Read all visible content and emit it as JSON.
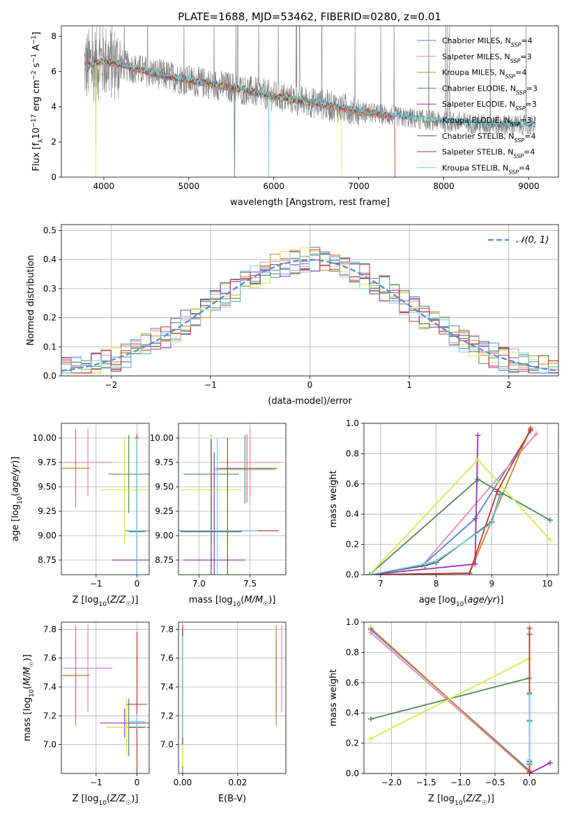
{
  "figure_title": "PLATE=1688, MJD=53462, FIBERID=0280, z=0.01",
  "palette": {
    "Chabrier MILES": "#5b7fd3",
    "Salpeter MILES": "#e587b5",
    "Kroupa MILES": "#c8862a",
    "Chabrier ELODIE": "#4f8a55",
    "Salpeter ELODIE": "#9b2fb5",
    "Kroupa ELODIE": "#d3ec4a",
    "Chabrier STELIB": "#555555",
    "Salpeter STELIB": "#c0392b",
    "Kroupa STELIB": "#6fd3e3"
  },
  "legend_items": [
    "Chabrier MILES",
    "Salpeter MILES",
    "Kroupa MILES",
    "Chabrier ELODIE",
    "Salpeter ELODIE",
    "Kroupa ELODIE",
    "Chabrier STELIB",
    "Salpeter STELIB",
    "Kroupa STELIB"
  ],
  "chart_data": [
    {
      "id": "spectrum",
      "type": "line",
      "xlabel": "wavelength [Angstrom, rest frame]",
      "ylabel": "Flux [f_λ 10^-17 erg cm^-2 s^-1 A^-1]",
      "xlim": [
        3500,
        9350
      ],
      "ylim": [
        0,
        8.6
      ],
      "xticks": [
        4000,
        5000,
        6000,
        7000,
        8000,
        9000
      ],
      "yticks": [
        0,
        2,
        4,
        6,
        8
      ],
      "legend_position": "top-right",
      "series": [
        {
          "name": "Chabrier MILES, N_SSP=4",
          "n_ssp": 4
        },
        {
          "name": "Salpeter MILES, N_SSP=3",
          "n_ssp": 3
        },
        {
          "name": "Kroupa MILES, N_SSP=4",
          "n_ssp": 4
        },
        {
          "name": "Chabrier ELODIE, N_SSP=3",
          "n_ssp": 3
        },
        {
          "name": "Salpeter ELODIE, N_SSP=3",
          "n_ssp": 3
        },
        {
          "name": "Kroupa ELODIE, N_SSP=3",
          "n_ssp": 3
        },
        {
          "name": "Chabrier STELIB, N_SSP=4",
          "n_ssp": 4
        },
        {
          "name": "Salpeter STELIB, N_SSP=4",
          "n_ssp": 4
        },
        {
          "name": "Kroupa STELIB, N_SSP=4",
          "n_ssp": 4
        }
      ],
      "continuum": {
        "x": [
          3800,
          4000,
          4200,
          4500,
          5000,
          5500,
          6000,
          6500,
          7000,
          7500,
          8000,
          8500,
          9000
        ],
        "y": [
          6.3,
          6.6,
          6.4,
          6.0,
          5.5,
          5.1,
          4.6,
          4.2,
          3.75,
          3.4,
          3.15,
          3.0,
          2.95
        ]
      }
    },
    {
      "id": "residuals",
      "type": "histogram",
      "xlabel": "(data-model)/error",
      "ylabel": "Normed distribution",
      "xlim": [
        -2.5,
        2.5
      ],
      "ylim": [
        0,
        0.52
      ],
      "xticks": [
        -2,
        -1,
        0,
        1,
        2
      ],
      "yticks": [
        0.0,
        0.1,
        0.2,
        0.3,
        0.4,
        0.5
      ],
      "legend": "𝒩(0, 1)",
      "reference_curve": "normal, mean 0, sd 1",
      "bin_width": 0.1,
      "envelope_bins": [
        -2.5,
        -2.4,
        -2.3,
        -2.2,
        -2.1,
        -2.0,
        -1.9,
        -1.8,
        -1.7,
        -1.6,
        -1.5,
        -1.4,
        -1.3,
        -1.2,
        -1.1,
        -1.0,
        -0.9,
        -0.8,
        -0.7,
        -0.6,
        -0.5,
        -0.4,
        -0.3,
        -0.2,
        -0.1,
        0.0,
        0.1,
        0.2,
        0.3,
        0.4,
        0.5,
        0.6,
        0.7,
        0.8,
        0.9,
        1.0,
        1.1,
        1.2,
        1.3,
        1.4,
        1.5,
        1.6,
        1.7,
        1.8,
        1.9,
        2.0,
        2.1,
        2.2,
        2.3,
        2.4
      ]
    },
    {
      "id": "age_vs_Z",
      "type": "errorbar",
      "xlabel": "Z [log10(Z/Z☉)]",
      "ylabel": "age [log10(age/yr)]",
      "xlim": [
        -1.85,
        0.3
      ],
      "ylim": [
        8.6,
        10.15
      ],
      "xticks": [
        -1,
        0
      ],
      "yticks": [
        8.75,
        9.0,
        9.25,
        9.5,
        9.75,
        10.0
      ],
      "points": [
        {
          "model": "Chabrier MILES",
          "x": 0.0,
          "y": 9.05,
          "xerr": 0.3,
          "yerr": 0.95
        },
        {
          "model": "Salpeter MILES",
          "x": -1.2,
          "y": 9.75,
          "xerr": 0.6,
          "yerr": 0.35
        },
        {
          "model": "Kroupa MILES",
          "x": -1.5,
          "y": 9.69,
          "xerr": 0.35,
          "yerr": 0.4
        },
        {
          "model": "Chabrier ELODIE",
          "x": -0.2,
          "y": 9.63,
          "xerr": 0.5,
          "yerr": 0.4
        },
        {
          "model": "Salpeter ELODIE",
          "x": 0.0,
          "y": 8.75,
          "xerr": 0.6,
          "yerr": 1.25
        },
        {
          "model": "Kroupa ELODIE",
          "x": -0.3,
          "y": 9.47,
          "xerr": 0.6,
          "yerr": 0.55
        },
        {
          "model": "Chabrier STELIB",
          "x": 0.0,
          "y": 9.04,
          "xerr": 0.2,
          "yerr": 0.95
        },
        {
          "model": "Salpeter STELIB",
          "x": 0.0,
          "y": 10.0,
          "xerr": 0.05,
          "yerr": 0.04
        },
        {
          "model": "Kroupa STELIB",
          "x": 0.0,
          "y": 9.05,
          "xerr": 0.2,
          "yerr": 0.95
        }
      ]
    },
    {
      "id": "age_vs_mass",
      "type": "errorbar",
      "xlabel": "mass [log10(M/M☉)]",
      "ylabel": "",
      "xlim": [
        6.8,
        7.85
      ],
      "ylim": [
        8.6,
        10.15
      ],
      "xticks": [
        7.0,
        7.5
      ],
      "yticks": [
        8.75,
        9.0,
        9.25,
        9.5,
        9.75,
        10.0
      ],
      "points": [
        {
          "model": "Chabrier MILES",
          "x": 7.45,
          "y": 9.68,
          "xerr": 0.3,
          "yerr": 0.35
        },
        {
          "model": "Salpeter MILES",
          "x": 7.5,
          "y": 9.75,
          "xerr": 0.3,
          "yerr": 0.35
        },
        {
          "model": "Kroupa MILES",
          "x": 7.47,
          "y": 9.69,
          "xerr": 0.3,
          "yerr": 0.35
        },
        {
          "model": "Chabrier ELODIE",
          "x": 7.12,
          "y": 9.63,
          "xerr": 0.27,
          "yerr": 0.4
        },
        {
          "model": "Salpeter ELODIE",
          "x": 7.15,
          "y": 8.75,
          "xerr": 0.3,
          "yerr": 1.1
        },
        {
          "model": "Kroupa ELODIE",
          "x": 7.12,
          "y": 9.47,
          "xerr": 0.3,
          "yerr": 0.55
        },
        {
          "model": "Chabrier STELIB",
          "x": 7.12,
          "y": 9.04,
          "xerr": 0.3,
          "yerr": 0.95
        },
        {
          "model": "Salpeter STELIB",
          "x": 7.28,
          "y": 9.05,
          "xerr": 0.5,
          "yerr": 0.95
        },
        {
          "model": "Kroupa STELIB",
          "x": 7.18,
          "y": 9.05,
          "xerr": 0.4,
          "yerr": 0.95
        }
      ]
    },
    {
      "id": "weight_vs_age",
      "type": "line",
      "xlabel": "age  [log10(age/yr)]",
      "ylabel": "mass weight",
      "xlim": [
        6.7,
        10.2
      ],
      "ylim": [
        0,
        1.0
      ],
      "xticks": [
        7,
        8,
        9,
        10
      ],
      "yticks": [
        0.0,
        0.2,
        0.4,
        0.6,
        0.8,
        1.0
      ],
      "series": [
        {
          "model": "Chabrier MILES",
          "x": [
            6.8,
            7.75,
            8.7,
            9.7
          ],
          "y": [
            0.0,
            0.06,
            0.37,
            0.95
          ]
        },
        {
          "model": "Salpeter MILES",
          "x": [
            6.8,
            7.75,
            9.8
          ],
          "y": [
            0.0,
            0.06,
            0.93
          ]
        },
        {
          "model": "Kroupa MILES",
          "x": [
            6.8,
            8.6,
            9.7
          ],
          "y": [
            0.0,
            0.01,
            0.97
          ]
        },
        {
          "model": "Chabrier ELODIE",
          "x": [
            6.8,
            8.75,
            10.05
          ],
          "y": [
            0.0,
            0.63,
            0.36
          ]
        },
        {
          "model": "Salpeter ELODIE",
          "x": [
            6.8,
            8.7,
            8.75
          ],
          "y": [
            0.0,
            0.07,
            0.92
          ]
        },
        {
          "model": "Kroupa ELODIE",
          "x": [
            6.8,
            8.75,
            10.05
          ],
          "y": [
            0.0,
            0.76,
            0.23
          ]
        },
        {
          "model": "Chabrier STELIB",
          "x": [
            6.8,
            7.8,
            8.0,
            9.0,
            9.15
          ],
          "y": [
            0.0,
            0.06,
            0.08,
            0.35,
            0.53
          ]
        },
        {
          "model": "Salpeter STELIB",
          "x": [
            6.8,
            8.6,
            9.1,
            9.7
          ],
          "y": [
            0.0,
            0.01,
            0.55,
            0.96
          ]
        },
        {
          "model": "Kroupa STELIB",
          "x": [
            6.8,
            7.8,
            8.0,
            9.0,
            9.15
          ],
          "y": [
            0.0,
            0.07,
            0.09,
            0.34,
            0.52
          ]
        }
      ]
    },
    {
      "id": "mass_vs_Z",
      "type": "errorbar",
      "xlabel": "Z [log10(Z/Z☉)]",
      "ylabel": "mass [log10(M/M☉)]",
      "xlim": [
        -1.85,
        0.3
      ],
      "ylim": [
        6.8,
        7.85
      ],
      "xticks": [
        -1,
        0
      ],
      "yticks": [
        7.0,
        7.2,
        7.4,
        7.6,
        7.8
      ],
      "points": [
        {
          "model": "Chabrier MILES",
          "x": -1.5,
          "y": 7.48,
          "xerr": 0.3,
          "yerr": 0.25
        },
        {
          "model": "Salpeter MILES",
          "x": -1.2,
          "y": 7.53,
          "xerr": 0.6,
          "yerr": 0.3
        },
        {
          "model": "Kroupa MILES",
          "x": -1.5,
          "y": 7.48,
          "xerr": 0.35,
          "yerr": 0.35
        },
        {
          "model": "Chabrier ELODIE",
          "x": -0.2,
          "y": 7.12,
          "xerr": 0.5,
          "yerr": 0.2
        },
        {
          "model": "Salpeter ELODIE",
          "x": -0.3,
          "y": 7.15,
          "xerr": 0.6,
          "yerr": 0.1
        },
        {
          "model": "Kroupa ELODIE",
          "x": -0.25,
          "y": 7.12,
          "xerr": 0.5,
          "yerr": 0.2
        },
        {
          "model": "Chabrier STELIB",
          "x": 0.0,
          "y": 7.12,
          "xerr": 0.2,
          "yerr": 0.05
        },
        {
          "model": "Salpeter STELIB",
          "x": 0.0,
          "y": 7.28,
          "xerr": 0.25,
          "yerr": 0.5
        },
        {
          "model": "Kroupa STELIB",
          "x": 0.0,
          "y": 7.16,
          "xerr": 0.2,
          "yerr": 0.05
        }
      ]
    },
    {
      "id": "mass_vs_EBV",
      "type": "errorbar",
      "xlabel": "E(B-V)",
      "ylabel": "",
      "xlim": [
        -0.0015,
        0.0375
      ],
      "ylim": [
        6.8,
        7.85
      ],
      "xticks": [
        0.0,
        0.02
      ],
      "yticks": [
        7.0,
        7.2,
        7.4,
        7.6,
        7.8
      ],
      "points": [
        {
          "model": "Chabrier MILES",
          "x": 0.034,
          "y": 7.48,
          "xerr": 0.0,
          "yerr": 0.25
        },
        {
          "model": "Salpeter MILES",
          "x": 0.036,
          "y": 7.53,
          "xerr": 0.0,
          "yerr": 0.3
        },
        {
          "model": "Kroupa MILES",
          "x": 0.034,
          "y": 7.48,
          "xerr": 0.0,
          "yerr": 0.35
        },
        {
          "model": "Chabrier ELODIE",
          "x": 0.0,
          "y": 7.3,
          "xerr": 0.0,
          "yerr": 0.5
        },
        {
          "model": "Salpeter ELODIE",
          "x": 0.0,
          "y": 7.4,
          "xerr": 0.0,
          "yerr": 0.4
        },
        {
          "model": "Kroupa ELODIE",
          "x": 0.0,
          "y": 7.3,
          "xerr": 0.0,
          "yerr": 0.45
        },
        {
          "model": "Chabrier STELIB",
          "x": 0.0,
          "y": 7.4,
          "xerr": 0.0,
          "yerr": 0.4
        },
        {
          "model": "Salpeter STELIB",
          "x": 0.0,
          "y": 7.45,
          "xerr": 0.0,
          "yerr": 0.38
        },
        {
          "model": "Kroupa STELIB",
          "x": 0.0,
          "y": 7.4,
          "xerr": 0.0,
          "yerr": 0.35
        }
      ]
    },
    {
      "id": "weight_vs_Z",
      "type": "line",
      "xlabel": "Z [log10(Z/Z☉)]",
      "ylabel": "mass weight",
      "xlim": [
        -2.4,
        0.42
      ],
      "ylim": [
        0,
        1.0
      ],
      "xticks": [
        -2.0,
        -1.5,
        -1.0,
        -0.5,
        0.0
      ],
      "yticks": [
        0.0,
        0.2,
        0.4,
        0.6,
        0.8,
        1.0
      ],
      "series": [
        {
          "model": "Chabrier MILES",
          "x": [
            -2.3,
            0.0
          ],
          "y": [
            0.95,
            0.02
          ]
        },
        {
          "model": "Salpeter MILES",
          "x": [
            -2.3,
            0.0
          ],
          "y": [
            0.93,
            0.01
          ]
        },
        {
          "model": "Kroupa MILES",
          "x": [
            -2.3,
            0.0
          ],
          "y": [
            0.96,
            0.01
          ]
        },
        {
          "model": "Chabrier ELODIE",
          "x": [
            -2.3,
            0.0
          ],
          "y": [
            0.36,
            0.63
          ]
        },
        {
          "model": "Salpeter ELODIE",
          "x": [
            0.3,
            0.0,
            0.0
          ],
          "y": [
            0.07,
            0.0,
            0.92
          ]
        },
        {
          "model": "Kroupa ELODIE",
          "x": [
            -2.3,
            0.0
          ],
          "y": [
            0.23,
            0.76
          ]
        },
        {
          "model": "Chabrier STELIB",
          "x": [
            0.0,
            0.0,
            0.0,
            0.0
          ],
          "y": [
            0.06,
            0.08,
            0.35,
            0.53
          ]
        },
        {
          "model": "Salpeter STELIB",
          "x": [
            0.0,
            0.0
          ],
          "y": [
            0.01,
            0.96
          ]
        },
        {
          "model": "Kroupa STELIB",
          "x": [
            0.0,
            0.0,
            0.0,
            0.0
          ],
          "y": [
            0.07,
            0.09,
            0.34,
            0.52
          ]
        }
      ]
    }
  ]
}
